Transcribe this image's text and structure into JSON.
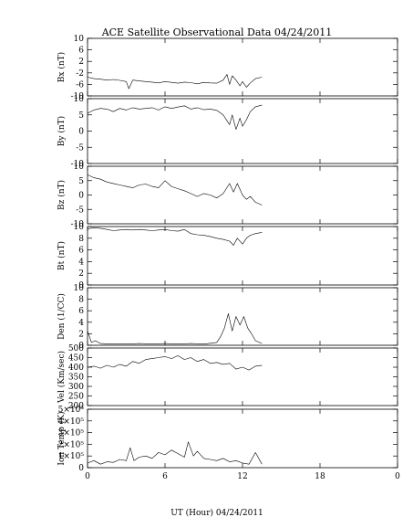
{
  "title": "ACE Satellite Observational Data   04/24/2011",
  "xlabel": "UT (Hour)   04/24/2011",
  "x_tick_labels": [
    "0",
    "6",
    "12",
    "18",
    "0"
  ],
  "chart_data": [
    {
      "type": "line",
      "id": "bx",
      "ylabel": "Bx (nT)",
      "ylim": [
        -10,
        10
      ],
      "yticks": [
        {
          "v": 10,
          "label": "10"
        },
        {
          "v": 6,
          "label": "6"
        },
        {
          "v": 2,
          "label": "2"
        },
        {
          "v": -2,
          "label": "-2"
        },
        {
          "v": -6,
          "label": "-6"
        },
        {
          "v": -10,
          "label": "-10"
        }
      ],
      "x": [
        0,
        0.5,
        1,
        1.5,
        2,
        2.5,
        3,
        3.2,
        3.5,
        4,
        4.5,
        5,
        5.5,
        6,
        6.5,
        7,
        7.5,
        8,
        8.5,
        9,
        9.5,
        10,
        10.5,
        10.8,
        11,
        11.2,
        11.5,
        11.8,
        12,
        12.3,
        12.6,
        13,
        13.5
      ],
      "y": [
        -3.5,
        -4,
        -4.2,
        -4.5,
        -4.3,
        -4.6,
        -5,
        -7.5,
        -4.5,
        -4.8,
        -5,
        -5.2,
        -5.5,
        -5,
        -5.3,
        -5.6,
        -5.2,
        -5.4,
        -5.8,
        -5.3,
        -5.5,
        -5.6,
        -4.5,
        -2.5,
        -6,
        -3,
        -4.5,
        -6.5,
        -5,
        -7,
        -5.5,
        -4,
        -3.5
      ]
    },
    {
      "type": "line",
      "id": "by",
      "ylabel": "By (nT)",
      "ylim": [
        -10,
        10
      ],
      "yticks": [
        {
          "v": 10,
          "label": "10"
        },
        {
          "v": 5,
          "label": "5"
        },
        {
          "v": 0,
          "label": "0"
        },
        {
          "v": -5,
          "label": "-5"
        },
        {
          "v": -10,
          "label": "-10"
        }
      ],
      "x": [
        0,
        0.5,
        1,
        1.5,
        2,
        2.5,
        3,
        3.5,
        4,
        4.5,
        5,
        5.5,
        6,
        6.5,
        7,
        7.5,
        8,
        8.5,
        9,
        9.5,
        10,
        10.5,
        11,
        11.2,
        11.5,
        11.8,
        12,
        12.3,
        12.6,
        13,
        13.5
      ],
      "y": [
        5.5,
        6.5,
        7,
        6.8,
        6,
        7,
        6.5,
        7.2,
        6.8,
        7,
        7.2,
        6.5,
        7.5,
        7,
        7.4,
        7.8,
        6.8,
        7.2,
        6.6,
        6.8,
        6.4,
        5,
        2,
        5,
        0.5,
        4,
        1.5,
        3.5,
        6,
        7.5,
        8
      ]
    },
    {
      "type": "line",
      "id": "bz",
      "ylabel": "Bz (nT)",
      "ylim": [
        -10,
        10
      ],
      "yticks": [
        {
          "v": 10,
          "label": "10"
        },
        {
          "v": 5,
          "label": "5"
        },
        {
          "v": 0,
          "label": "0"
        },
        {
          "v": -5,
          "label": "-5"
        },
        {
          "v": -10,
          "label": "-10"
        }
      ],
      "x": [
        0,
        0.5,
        1,
        1.5,
        2,
        2.5,
        3,
        3.5,
        4,
        4.5,
        5,
        5.5,
        6,
        6.5,
        7,
        7.5,
        8,
        8.5,
        9,
        9.5,
        10,
        10.5,
        11,
        11.3,
        11.6,
        12,
        12.3,
        12.6,
        13,
        13.5
      ],
      "y": [
        7,
        6,
        5.5,
        4.5,
        4,
        3.5,
        3,
        2.5,
        3.5,
        3.8,
        3,
        2.5,
        5,
        3,
        2.2,
        1.5,
        0.5,
        -0.5,
        0.5,
        0,
        -1,
        0.5,
        4,
        1,
        4,
        0,
        -1.5,
        -0.5,
        -2.5,
        -3.5
      ]
    },
    {
      "type": "line",
      "id": "bt",
      "ylabel": "Bt (nT)",
      "ylim": [
        0,
        10
      ],
      "yticks": [
        {
          "v": 10,
          "label": "10"
        },
        {
          "v": 8,
          "label": "8"
        },
        {
          "v": 6,
          "label": "6"
        },
        {
          "v": 4,
          "label": "4"
        },
        {
          "v": 2,
          "label": "2"
        },
        {
          "v": 0,
          "label": "0"
        }
      ],
      "x": [
        0,
        0.5,
        1,
        1.5,
        2,
        2.5,
        3,
        3.5,
        4,
        4.5,
        5,
        5.5,
        6,
        6.5,
        7,
        7.5,
        8,
        8.5,
        9,
        9.5,
        10,
        10.5,
        11,
        11.3,
        11.6,
        12,
        12.3,
        12.6,
        13,
        13.5
      ],
      "y": [
        9.6,
        9.8,
        9.7,
        9.5,
        9.3,
        9.4,
        9.5,
        9.4,
        9.5,
        9.4,
        9.3,
        9.4,
        9.5,
        9.3,
        9.2,
        9.5,
        8.8,
        8.6,
        8.5,
        8.3,
        8,
        7.8,
        7.5,
        6.8,
        8,
        7,
        8,
        8.5,
        8.8,
        9
      ]
    },
    {
      "type": "line",
      "id": "den",
      "ylabel": "Den (1/CC)",
      "ylim": [
        0,
        10
      ],
      "yticks": [
        {
          "v": 10,
          "label": "10"
        },
        {
          "v": 8,
          "label": "8"
        },
        {
          "v": 6,
          "label": "6"
        },
        {
          "v": 4,
          "label": "4"
        },
        {
          "v": 2,
          "label": "2"
        },
        {
          "v": 0,
          "label": "0"
        }
      ],
      "x": [
        0,
        0.3,
        0.6,
        1,
        2,
        3,
        4,
        5,
        6,
        7,
        8,
        9,
        10,
        10.3,
        10.6,
        10.9,
        11.2,
        11.5,
        11.8,
        12.1,
        12.4,
        12.7,
        13,
        13.5
      ],
      "y": [
        2.5,
        0.5,
        0.8,
        0.3,
        0.2,
        0.2,
        0.3,
        0.2,
        0.3,
        0.2,
        0.3,
        0.2,
        0.5,
        1.5,
        3,
        5.5,
        2.5,
        5,
        3.5,
        5,
        3,
        2,
        0.8,
        0.3
      ]
    },
    {
      "type": "line",
      "id": "vel",
      "ylabel": "Vel (Km/sec)",
      "ylim": [
        200,
        500
      ],
      "yticks": [
        {
          "v": 500,
          "label": "500"
        },
        {
          "v": 450,
          "label": "450"
        },
        {
          "v": 400,
          "label": "400"
        },
        {
          "v": 350,
          "label": "350"
        },
        {
          "v": 300,
          "label": "300"
        },
        {
          "v": 250,
          "label": "250"
        },
        {
          "v": 200,
          "label": "200"
        }
      ],
      "x": [
        0,
        0.5,
        1,
        1.5,
        2,
        2.5,
        3,
        3.5,
        4,
        4.5,
        5,
        5.5,
        6,
        6.5,
        7,
        7.5,
        8,
        8.5,
        9,
        9.5,
        10,
        10.5,
        11,
        11.5,
        12,
        12.5,
        13,
        13.5
      ],
      "y": [
        400,
        405,
        395,
        410,
        400,
        415,
        405,
        430,
        420,
        440,
        445,
        450,
        455,
        445,
        460,
        440,
        450,
        430,
        440,
        420,
        425,
        415,
        420,
        390,
        400,
        385,
        405,
        410
      ]
    },
    {
      "type": "line",
      "id": "temp",
      "ylabel": "Ion Temp (K)",
      "ylim": [
        0,
        500000
      ],
      "yticks": [
        {
          "v": 500000,
          "label": "5×10⁵"
        },
        {
          "v": 400000,
          "label": "4×10⁵"
        },
        {
          "v": 300000,
          "label": "3×10⁵"
        },
        {
          "v": 200000,
          "label": "2×10⁵"
        },
        {
          "v": 100000,
          "label": "1×10⁵"
        },
        {
          "v": 0,
          "label": "0"
        }
      ],
      "x": [
        0,
        0.5,
        1,
        1.5,
        2,
        2.5,
        3,
        3.3,
        3.6,
        4,
        4.5,
        5,
        5.5,
        6,
        6.5,
        7,
        7.5,
        7.8,
        8.2,
        8.5,
        9,
        9.5,
        10,
        10.5,
        11,
        11.5,
        12,
        12.5,
        13,
        13.5
      ],
      "y": [
        40000,
        60000,
        30000,
        50000,
        45000,
        70000,
        60000,
        170000,
        60000,
        90000,
        100000,
        80000,
        130000,
        110000,
        150000,
        120000,
        90000,
        220000,
        100000,
        140000,
        80000,
        70000,
        60000,
        80000,
        50000,
        60000,
        40000,
        30000,
        130000,
        30000
      ]
    }
  ]
}
